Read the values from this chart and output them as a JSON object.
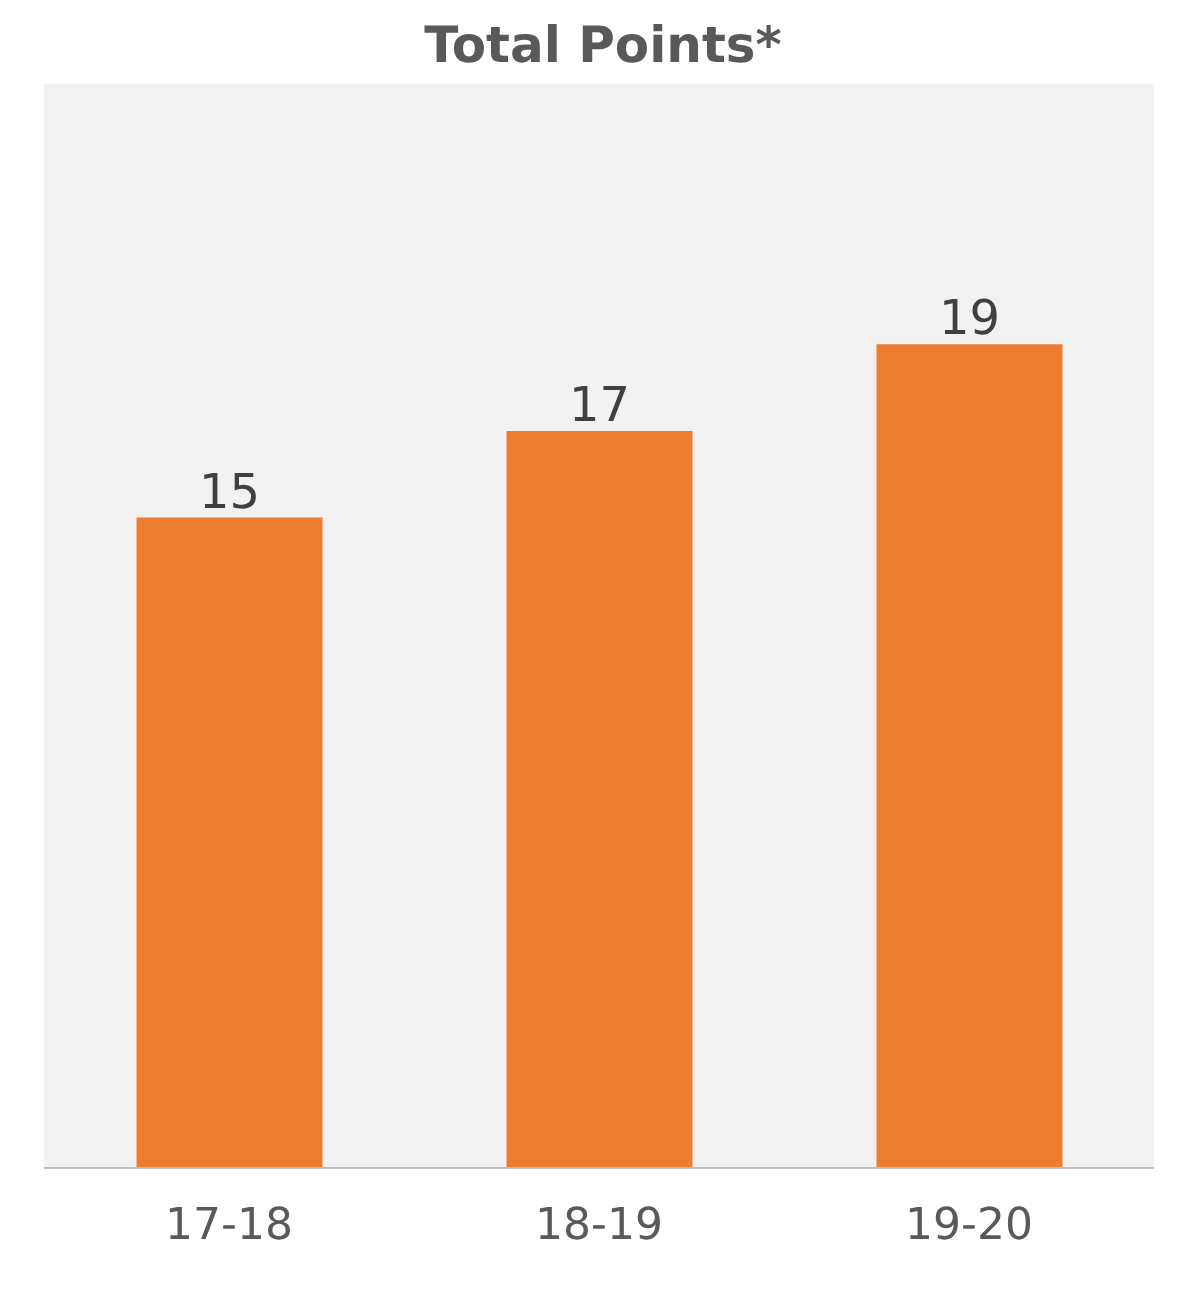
{
  "chart_data": {
    "type": "bar",
    "title": "Total Points*",
    "categories": [
      "17-18",
      "18-19",
      "19-20"
    ],
    "values": [
      15,
      17,
      19
    ],
    "color": "#ed7d31",
    "ylim": [
      0,
      25
    ],
    "tick_labels": "x",
    "data_labels": true
  }
}
